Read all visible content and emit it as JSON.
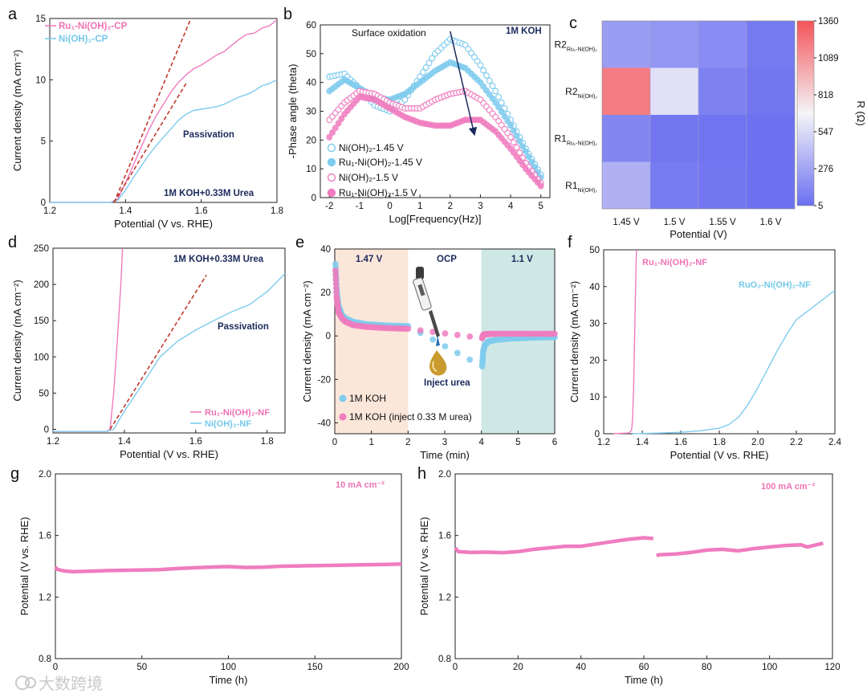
{
  "colors": {
    "pink": "#f07cbf",
    "blue": "#7ecbee",
    "dark_red": "#c0392b",
    "navy": "#1b2a5c",
    "shade_pink": "#fbe6da",
    "shade_teal": "#cfe8e6",
    "heat_low": "#6b6ff0",
    "heat_mid": "#f5f5f8",
    "heat_high": "#f4545a"
  },
  "watermark": "大数跨境",
  "chart_data": [
    {
      "id": "a",
      "letter": "a",
      "type": "line",
      "xlabel": "Potential (V vs. RHE)",
      "ylabel": "Current density (mA cm⁻²)",
      "xlim": [
        1.2,
        1.8
      ],
      "ylim": [
        0,
        15
      ],
      "xticks": [
        1.2,
        1.4,
        1.6,
        1.8
      ],
      "yticks": [
        0,
        5,
        10,
        15
      ],
      "tick_labels_x": [
        "1.2",
        "1.4",
        "1.6",
        "1.8"
      ],
      "tick_labels_y": [
        "0",
        "5",
        "10",
        "15"
      ],
      "legend": [
        "Ru₁-Ni(OH)₂-CP",
        "Ni(OH)₂-CP"
      ],
      "annotations": [
        "Passivation",
        "1M KOH+0.33M Urea"
      ],
      "series": [
        {
          "name": "Ru₁-Ni(OH)₂-CP",
          "color": "pink",
          "x": [
            1.2,
            1.36,
            1.38,
            1.4,
            1.42,
            1.44,
            1.46,
            1.48,
            1.5,
            1.52,
            1.54,
            1.56,
            1.58,
            1.6,
            1.62,
            1.64,
            1.66,
            1.68,
            1.7,
            1.72,
            1.74,
            1.76,
            1.78,
            1.8
          ],
          "y": [
            0,
            0,
            0.3,
            1.6,
            3.0,
            4.4,
            5.8,
            7.0,
            8.0,
            9.0,
            9.8,
            10.4,
            10.9,
            11.2,
            11.6,
            12.0,
            12.3,
            12.8,
            13.3,
            13.7,
            13.8,
            14.2,
            14.4,
            14.9
          ]
        },
        {
          "name": "Ni(OH)₂-CP",
          "color": "blue",
          "x": [
            1.2,
            1.36,
            1.38,
            1.4,
            1.42,
            1.44,
            1.46,
            1.48,
            1.5,
            1.52,
            1.54,
            1.56,
            1.58,
            1.6,
            1.62,
            1.64,
            1.66,
            1.68,
            1.7,
            1.72,
            1.74,
            1.76,
            1.78,
            1.8
          ],
          "y": [
            0,
            0,
            0.2,
            1.0,
            2.0,
            2.9,
            3.8,
            4.6,
            5.3,
            6.0,
            6.7,
            7.2,
            7.5,
            7.6,
            7.7,
            7.8,
            8.0,
            8.3,
            8.6,
            8.8,
            9.1,
            9.5,
            9.7,
            10.0
          ]
        }
      ],
      "fit_lines": [
        {
          "x": [
            1.37,
            1.57
          ],
          "y": [
            0,
            14.8
          ]
        },
        {
          "x": [
            1.37,
            1.56
          ],
          "y": [
            0,
            9.7
          ]
        }
      ]
    },
    {
      "id": "b",
      "letter": "b",
      "type": "scatter",
      "xlabel": "Log[Frequency(Hz)]",
      "ylabel": "-Phase angle (theta)",
      "xlim": [
        -2.3,
        5.3
      ],
      "ylim": [
        0,
        60
      ],
      "xticks": [
        -2,
        -1,
        0,
        1,
        2,
        3,
        4,
        5
      ],
      "yticks": [
        0,
        10,
        20,
        30,
        40,
        50,
        60
      ],
      "tick_labels_x": [
        "-2",
        "-1",
        "0",
        "1",
        "2",
        "3",
        "4",
        "5"
      ],
      "tick_labels_y": [
        "0",
        "10",
        "20",
        "30",
        "40",
        "50",
        "60"
      ],
      "annotations": [
        "Surface oxidation",
        "1M KOH"
      ],
      "legend": [
        "Ni(OH)₂-1.45 V",
        "Ru₁-Ni(OH)₂-1.45 V",
        "Ni(OH)₂-1.5 V",
        "Ru₁-Ni(OH)₂-1.5 V"
      ],
      "series": [
        {
          "name": "Ni(OH)₂-1.45 V",
          "color": "blue",
          "filled": false,
          "x": [
            -2,
            -1.5,
            -1,
            -0.5,
            0,
            0.5,
            1,
            1.5,
            2,
            2.5,
            3,
            3.5,
            4,
            4.5,
            5
          ],
          "y": [
            42,
            43,
            38,
            32,
            30,
            34,
            42,
            50,
            55,
            53,
            46,
            37,
            27,
            17,
            8
          ]
        },
        {
          "name": "Ru₁-Ni(OH)₂-1.45 V",
          "color": "blue",
          "filled": true,
          "x": [
            -2,
            -1.5,
            -1,
            -0.5,
            0,
            0.5,
            1,
            1.5,
            2,
            2.5,
            3,
            3.5,
            4,
            4.5,
            5
          ],
          "y": [
            37,
            41,
            38,
            35,
            34,
            36,
            40,
            44,
            47,
            45,
            40,
            33,
            25,
            16,
            7
          ]
        },
        {
          "name": "Ni(OH)₂-1.5 V",
          "color": "pink",
          "filled": false,
          "x": [
            -2,
            -1.5,
            -1,
            -0.5,
            0,
            0.5,
            1,
            1.5,
            2,
            2.5,
            3,
            3.5,
            4,
            4.5,
            5
          ],
          "y": [
            27,
            33,
            37,
            36,
            33,
            31,
            31,
            34,
            36,
            37,
            34,
            28,
            21,
            12,
            5
          ]
        },
        {
          "name": "Ru₁-Ni(OH)₂-1.5 V",
          "color": "pink",
          "filled": true,
          "x": [
            -2,
            -1.5,
            -1,
            -0.5,
            0,
            0.5,
            1,
            1.5,
            2,
            2.5,
            3,
            3.5,
            4,
            4.5,
            5
          ],
          "y": [
            21,
            29,
            35,
            34,
            31,
            28,
            26,
            25,
            25,
            27,
            27,
            23,
            17,
            10,
            4
          ]
        }
      ],
      "arrow": {
        "from": [
          2.0,
          55
        ],
        "to": [
          2.8,
          22
        ]
      }
    },
    {
      "id": "c",
      "letter": "c",
      "type": "heatmap",
      "xlabel": "Potential (V)",
      "colorbar_label": "R (Ω)",
      "x_categories": [
        "1.45 V",
        "1.5 V",
        "1.55 V",
        "1.6 V"
      ],
      "y_categories": [
        {
          "main": "R2",
          "sub": "Ru₁-Ni(OH)₂"
        },
        {
          "main": "R2",
          "sub": "Ni(OH)₂"
        },
        {
          "main": "R1",
          "sub": "Ru₁-Ni(OH)₂"
        },
        {
          "main": "R1",
          "sub": "Ni(OH)₂"
        }
      ],
      "values": [
        [
          240,
          200,
          150,
          60
        ],
        [
          1190,
          580,
          100,
          40
        ],
        [
          120,
          40,
          30,
          20
        ],
        [
          340,
          70,
          40,
          20
        ]
      ],
      "range": [
        5,
        1360
      ],
      "colorbar_ticks": [
        5,
        276,
        547,
        818,
        1089,
        1360
      ],
      "colorbar_tick_labels": [
        "5",
        "276",
        "547",
        "818",
        "1089",
        "1360"
      ]
    },
    {
      "id": "d",
      "letter": "d",
      "type": "line",
      "xlabel": "Potential (V vs. RHE)",
      "ylabel": "Current density (mA cm⁻²)",
      "xlim": [
        1.2,
        1.85
      ],
      "ylim": [
        -5,
        250
      ],
      "xticks": [
        1.2,
        1.4,
        1.6,
        1.8
      ],
      "yticks": [
        0,
        50,
        100,
        150,
        200,
        250
      ],
      "tick_labels_x": [
        "1.2",
        "1.4",
        "1.6",
        "1.8"
      ],
      "tick_labels_y": [
        "0",
        "50",
        "100",
        "150",
        "200",
        "250"
      ],
      "legend": [
        "Ru₁-Ni(OH)₂-NF",
        "Ni(OH)₂-NF"
      ],
      "annotations": [
        "1M KOH+0.33M Urea",
        "Passivation"
      ],
      "series": [
        {
          "name": "Ru₁-Ni(OH)₂-NF",
          "color": "pink",
          "x": [
            1.2,
            1.35,
            1.36,
            1.37,
            1.38,
            1.39,
            1.395
          ],
          "y": [
            -3,
            -3,
            0,
            50,
            120,
            200,
            250
          ]
        },
        {
          "name": "Ni(OH)₂-NF",
          "color": "blue",
          "x": [
            1.2,
            1.35,
            1.37,
            1.4,
            1.45,
            1.5,
            1.55,
            1.6,
            1.65,
            1.7,
            1.75,
            1.8,
            1.85
          ],
          "y": [
            -3,
            -3,
            0,
            25,
            62,
            100,
            122,
            137,
            150,
            162,
            172,
            190,
            215
          ]
        }
      ],
      "fit_lines": [
        {
          "x": [
            1.36,
            1.63
          ],
          "y": [
            0,
            213
          ]
        }
      ]
    },
    {
      "id": "e",
      "letter": "e",
      "type": "scatter",
      "xlabel": "Time (min)",
      "ylabel": "Current density (mA cm⁻²)",
      "xlim": [
        0,
        6
      ],
      "ylim": [
        -45,
        40
      ],
      "xticks": [
        0,
        1,
        2,
        3,
        4,
        5,
        6
      ],
      "yticks": [
        -40,
        -20,
        0,
        20,
        40
      ],
      "tick_labels_x": [
        "0",
        "1",
        "2",
        "3",
        "4",
        "5",
        "6"
      ],
      "tick_labels_y": [
        "-40",
        "-20",
        "0",
        "20",
        "40"
      ],
      "regions": [
        {
          "label": "1.47 V",
          "x": [
            0,
            2
          ],
          "color": "shade_pink"
        },
        {
          "label": "OCP",
          "x": [
            2,
            4
          ],
          "color": "none"
        },
        {
          "label": "1.1 V",
          "x": [
            4,
            6
          ],
          "color": "shade_teal"
        }
      ],
      "annotations": [
        "Inject urea"
      ],
      "legend": [
        "1M KOH",
        "1M KOH (inject 0.33 M urea)"
      ],
      "series": [
        {
          "name": "1M KOH",
          "color": "blue",
          "x": [
            0.02,
            0.05,
            0.1,
            0.2,
            0.3,
            0.5,
            0.8,
            1.2,
            1.6,
            2.0,
            4.02,
            4.05,
            4.1,
            4.2,
            4.4,
            4.8,
            5.2,
            5.6,
            6.0
          ],
          "y": [
            33,
            22,
            14,
            9.5,
            8,
            6.5,
            5.5,
            5,
            4.7,
            4.5,
            -14,
            -7,
            -4,
            -2.5,
            -1.8,
            -1.2,
            -0.9,
            -0.7,
            -0.6
          ]
        },
        {
          "name": "1M KOH (inject 0.33 M urea)",
          "color": "pink",
          "x": [
            0.02,
            0.05,
            0.1,
            0.2,
            0.3,
            0.5,
            0.8,
            1.2,
            1.6,
            2.0,
            4.02,
            4.05,
            4.1,
            4.2,
            4.4,
            4.8,
            5.2,
            5.6,
            6.0
          ],
          "y": [
            30,
            18,
            11,
            8,
            6.5,
            5,
            4.3,
            3.8,
            3.5,
            3.3,
            -1,
            0.5,
            0.8,
            0.9,
            1.0,
            1.0,
            1.0,
            1.0,
            1.0
          ]
        }
      ]
    },
    {
      "id": "f",
      "letter": "f",
      "type": "line",
      "xlabel": "Potential (V vs. RHE)",
      "ylabel": "Current density (mA cm⁻²)",
      "xlim": [
        1.2,
        2.4
      ],
      "ylim": [
        0,
        50
      ],
      "xticks": [
        1.2,
        1.4,
        1.6,
        1.8,
        2.0,
        2.2,
        2.4
      ],
      "yticks": [
        0,
        10,
        20,
        30,
        40,
        50
      ],
      "tick_labels_x": [
        "1.2",
        "1.4",
        "1.6",
        "1.8",
        "2.0",
        "2.2",
        "2.4"
      ],
      "tick_labels_y": [
        "0",
        "10",
        "20",
        "30",
        "40",
        "50"
      ],
      "legend": [
        "Ru₁-Ni(OH)₂-NF",
        "RuO₂-Ni(OH)₂-NF"
      ],
      "series": [
        {
          "name": "Ru₁-Ni(OH)₂-NF",
          "color": "pink",
          "x": [
            1.25,
            1.33,
            1.345,
            1.35,
            1.355,
            1.36,
            1.365,
            1.37
          ],
          "y": [
            0,
            0.2,
            1,
            4,
            12,
            25,
            38,
            50
          ]
        },
        {
          "name": "RuO₂-Ni(OH)₂-NF",
          "color": "blue",
          "x": [
            1.35,
            1.5,
            1.6,
            1.7,
            1.8,
            1.85,
            1.9,
            1.95,
            2.0,
            2.05,
            2.1,
            2.15,
            2.2,
            2.25,
            2.3,
            2.35,
            2.4
          ],
          "y": [
            0,
            0.2,
            0.4,
            0.8,
            1.5,
            2.5,
            4.5,
            8,
            12.5,
            17.5,
            22.5,
            27,
            31,
            33,
            35,
            37,
            39
          ]
        }
      ]
    },
    {
      "id": "g",
      "letter": "g",
      "type": "line",
      "xlabel": "Time (h)",
      "ylabel": "Potential (V vs. RHE)",
      "xlim": [
        0,
        200
      ],
      "ylim": [
        0.8,
        2.0
      ],
      "xticks": [
        0,
        50,
        100,
        150,
        200
      ],
      "yticks": [
        0.8,
        1.2,
        1.6,
        2.0
      ],
      "tick_labels_x": [
        "0",
        "50",
        "100",
        "150",
        "200"
      ],
      "tick_labels_y": [
        "0.8",
        "1.2",
        "1.6",
        "2.0"
      ],
      "annotations": [
        "10 mA cm⁻²"
      ],
      "series": [
        {
          "name": "10 mA cm⁻²",
          "color": "pink",
          "x": [
            0,
            1,
            5,
            10,
            20,
            30,
            40,
            50,
            60,
            70,
            80,
            90,
            100,
            110,
            120,
            130,
            140,
            150,
            160,
            170,
            180,
            190,
            200
          ],
          "y": [
            1.395,
            1.38,
            1.37,
            1.365,
            1.368,
            1.372,
            1.374,
            1.376,
            1.378,
            1.385,
            1.39,
            1.395,
            1.398,
            1.392,
            1.394,
            1.4,
            1.402,
            1.404,
            1.406,
            1.408,
            1.41,
            1.412,
            1.414
          ]
        }
      ]
    },
    {
      "id": "h",
      "letter": "h",
      "type": "line",
      "xlabel": "Time (h)",
      "ylabel": "Potential (V vs. RHE)",
      "xlim": [
        0,
        120
      ],
      "ylim": [
        0.8,
        2.0
      ],
      "xticks": [
        0,
        20,
        40,
        60,
        80,
        100,
        120
      ],
      "yticks": [
        0.8,
        1.2,
        1.6,
        2.0
      ],
      "tick_labels_x": [
        "0",
        "20",
        "40",
        "60",
        "80",
        "100",
        "120"
      ],
      "tick_labels_y": [
        "0.8",
        "1.2",
        "1.6",
        "2.0"
      ],
      "annotations": [
        "100 mA cm⁻²"
      ],
      "series": [
        {
          "name": "100 mA cm⁻² (part 1)",
          "color": "pink",
          "x": [
            0,
            1,
            5,
            10,
            15,
            20,
            25,
            30,
            35,
            40,
            45,
            50,
            55,
            60,
            63
          ],
          "y": [
            1.52,
            1.495,
            1.49,
            1.492,
            1.488,
            1.495,
            1.51,
            1.52,
            1.53,
            1.53,
            1.545,
            1.56,
            1.575,
            1.585,
            1.58
          ]
        },
        {
          "name": "100 mA cm⁻² (part 2)",
          "color": "pink",
          "x": [
            64,
            65,
            70,
            75,
            80,
            85,
            90,
            95,
            100,
            105,
            110,
            112,
            115,
            117
          ],
          "y": [
            1.47,
            1.475,
            1.48,
            1.49,
            1.505,
            1.51,
            1.5,
            1.515,
            1.525,
            1.535,
            1.54,
            1.525,
            1.54,
            1.55
          ]
        }
      ]
    }
  ]
}
